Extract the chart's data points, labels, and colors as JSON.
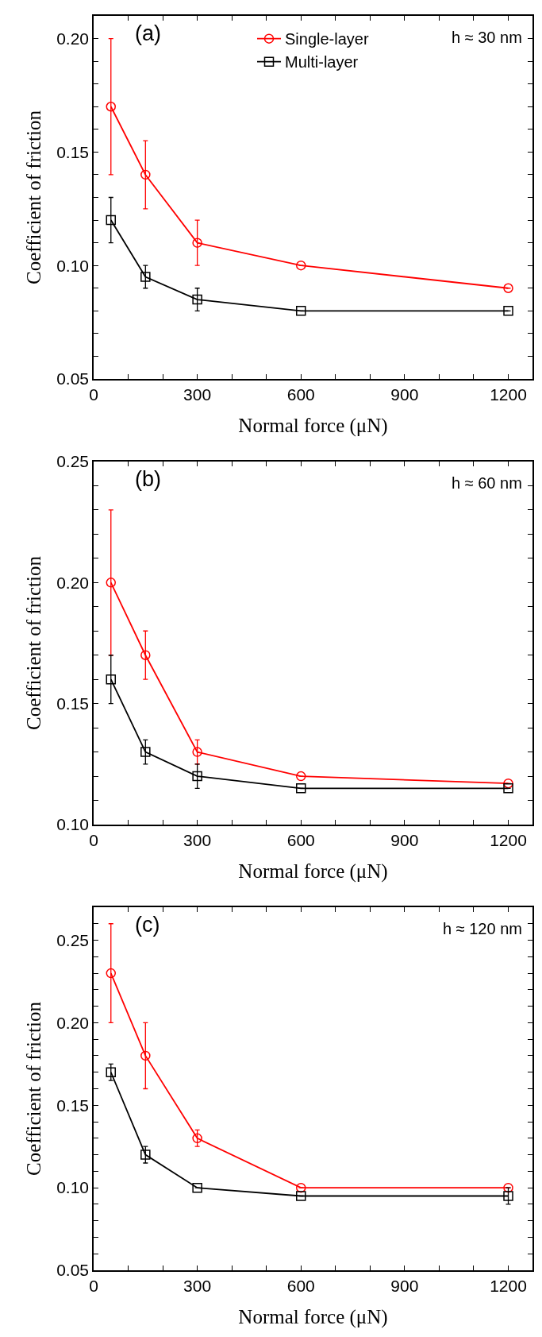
{
  "chart_data": [
    {
      "type": "line",
      "xlabel": "Normal force (μN)",
      "ylabel": "Coefficient of friction",
      "annotations": [
        "(a)",
        "h ≈ 30 nm"
      ],
      "x": [
        50,
        150,
        300,
        600,
        1200
      ],
      "xlim": [
        0,
        1270
      ],
      "xticks": [
        0,
        {
          "value": 100,
          "label": null
        },
        {
          "value": 200,
          "label": null
        },
        300,
        {
          "value": 400,
          "label": null
        },
        {
          "value": 500,
          "label": null
        },
        600,
        {
          "value": 700,
          "label": null
        },
        {
          "value": 800,
          "label": null
        },
        900,
        {
          "value": 1000,
          "label": null
        },
        {
          "value": 1100,
          "label": null
        },
        1200
      ],
      "ylim": [
        0.05,
        0.21
      ],
      "yticks": [
        0.05,
        {
          "value": 0.06,
          "label": null
        },
        {
          "value": 0.07,
          "label": null
        },
        {
          "value": 0.08,
          "label": null
        },
        {
          "value": 0.09,
          "label": null
        },
        {
          "value": 0.1,
          "label": "0.10"
        },
        {
          "value": 0.11,
          "label": null
        },
        {
          "value": 0.12,
          "label": null
        },
        {
          "value": 0.13,
          "label": null
        },
        {
          "value": 0.14,
          "label": null
        },
        0.15,
        {
          "value": 0.16,
          "label": null
        },
        {
          "value": 0.17,
          "label": null
        },
        {
          "value": 0.18,
          "label": null
        },
        {
          "value": 0.19,
          "label": null
        },
        {
          "value": 0.2,
          "label": "0.20"
        }
      ],
      "grid": false,
      "legend": "top",
      "line_style": "solid",
      "series": [
        {
          "name": "Single-layer",
          "color": "#ff0000",
          "marker": "circle",
          "values": [
            0.17,
            0.14,
            0.11,
            0.1,
            0.09
          ],
          "errors": [
            [
              0.14,
              0.2
            ],
            [
              0.125,
              0.155
            ],
            [
              0.1,
              0.12
            ],
            null,
            null
          ]
        },
        {
          "name": "Multi-layer",
          "color": "#000000",
          "marker": "square",
          "values": [
            0.12,
            0.095,
            0.085,
            0.08,
            0.08
          ],
          "errors": [
            [
              0.11,
              0.13
            ],
            [
              0.09,
              0.1
            ],
            [
              0.08,
              0.09
            ],
            null,
            null
          ]
        }
      ]
    },
    {
      "type": "line",
      "xlabel": "Normal force (μN)",
      "ylabel": "Coefficient of friction",
      "annotations": [
        "(b)",
        "h ≈ 60 nm"
      ],
      "x": [
        50,
        150,
        300,
        600,
        1200
      ],
      "xlim": [
        0,
        1270
      ],
      "xticks": [
        0,
        {
          "value": 100,
          "label": null
        },
        {
          "value": 200,
          "label": null
        },
        300,
        {
          "value": 400,
          "label": null
        },
        {
          "value": 500,
          "label": null
        },
        600,
        {
          "value": 700,
          "label": null
        },
        {
          "value": 800,
          "label": null
        },
        900,
        {
          "value": 1000,
          "label": null
        },
        {
          "value": 1100,
          "label": null
        },
        1200
      ],
      "ylim": [
        0.1,
        0.25
      ],
      "yticks": [
        {
          "value": 0.1,
          "label": "0.10"
        },
        {
          "value": 0.11,
          "label": null
        },
        {
          "value": 0.12,
          "label": null
        },
        {
          "value": 0.13,
          "label": null
        },
        {
          "value": 0.14,
          "label": null
        },
        0.15,
        {
          "value": 0.16,
          "label": null
        },
        {
          "value": 0.17,
          "label": null
        },
        {
          "value": 0.18,
          "label": null
        },
        {
          "value": 0.19,
          "label": null
        },
        {
          "value": 0.2,
          "label": "0.20"
        },
        {
          "value": 0.21,
          "label": null
        },
        {
          "value": 0.22,
          "label": null
        },
        {
          "value": 0.23,
          "label": null
        },
        {
          "value": 0.24,
          "label": null
        },
        0.25
      ],
      "grid": false,
      "legend": false,
      "line_style": "solid",
      "series": [
        {
          "color": "#ff0000",
          "marker": "circle",
          "values": [
            0.2,
            0.17,
            0.13,
            0.12,
            0.117
          ],
          "errors": [
            [
              0.17,
              0.23
            ],
            [
              0.16,
              0.18
            ],
            [
              0.125,
              0.135
            ],
            null,
            null
          ]
        },
        {
          "color": "#000000",
          "marker": "square",
          "values": [
            0.16,
            0.13,
            0.12,
            0.115,
            0.115
          ],
          "errors": [
            [
              0.15,
              0.17
            ],
            [
              0.125,
              0.135
            ],
            [
              0.115,
              0.125
            ],
            null,
            null
          ]
        }
      ]
    },
    {
      "type": "line",
      "xlabel": "Normal force (μN)",
      "ylabel": "Coefficient of friction",
      "annotations": [
        "(c)",
        "h ≈ 120 nm"
      ],
      "x": [
        50,
        150,
        300,
        600,
        1200
      ],
      "xlim": [
        0,
        1270
      ],
      "xticks": [
        0,
        {
          "value": 100,
          "label": null
        },
        {
          "value": 200,
          "label": null
        },
        300,
        {
          "value": 400,
          "label": null
        },
        {
          "value": 500,
          "label": null
        },
        600,
        {
          "value": 700,
          "label": null
        },
        {
          "value": 800,
          "label": null
        },
        900,
        {
          "value": 1000,
          "label": null
        },
        {
          "value": 1100,
          "label": null
        },
        1200
      ],
      "ylim": [
        0.05,
        0.27
      ],
      "yticks": [
        0.05,
        {
          "value": 0.06,
          "label": null
        },
        {
          "value": 0.07,
          "label": null
        },
        {
          "value": 0.08,
          "label": null
        },
        {
          "value": 0.09,
          "label": null
        },
        {
          "value": 0.1,
          "label": "0.10"
        },
        {
          "value": 0.11,
          "label": null
        },
        {
          "value": 0.12,
          "label": null
        },
        {
          "value": 0.13,
          "label": null
        },
        {
          "value": 0.14,
          "label": null
        },
        0.15,
        {
          "value": 0.16,
          "label": null
        },
        {
          "value": 0.17,
          "label": null
        },
        {
          "value": 0.18,
          "label": null
        },
        {
          "value": 0.19,
          "label": null
        },
        {
          "value": 0.2,
          "label": "0.20"
        },
        {
          "value": 0.21,
          "label": null
        },
        {
          "value": 0.22,
          "label": null
        },
        {
          "value": 0.23,
          "label": null
        },
        {
          "value": 0.24,
          "label": null
        },
        0.25,
        {
          "value": 0.26,
          "label": null
        }
      ],
      "grid": false,
      "legend": false,
      "line_style": "solid",
      "series": [
        {
          "color": "#ff0000",
          "marker": "circle",
          "values": [
            0.23,
            0.18,
            0.13,
            0.1,
            0.1
          ],
          "errors": [
            [
              0.2,
              0.26
            ],
            [
              0.16,
              0.2
            ],
            [
              0.125,
              0.135
            ],
            null,
            null
          ]
        },
        {
          "color": "#000000",
          "marker": "square",
          "values": [
            0.17,
            0.12,
            0.1,
            0.095,
            0.095
          ],
          "errors": [
            [
              0.165,
              0.175
            ],
            [
              0.115,
              0.125
            ],
            null,
            null,
            0.005
          ]
        }
      ]
    }
  ]
}
